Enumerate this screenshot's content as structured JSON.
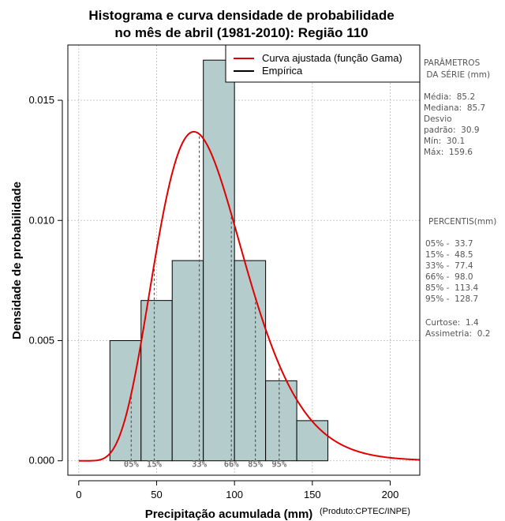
{
  "chart_data": {
    "type": "histogram",
    "title_lines": [
      "Histograma e curva densidade de probabilidade",
      "no mês de abril (1981-2010): Região 110"
    ],
    "xlabel": "Precipitação acumulada (mm)",
    "ylabel": "Densidade de probabilidade",
    "credit": "(Produto:CPTEC/INPE)",
    "xlim": [
      -7,
      219
    ],
    "ylim": [
      -0.0006,
      0.0173
    ],
    "x_ticks": [
      0,
      50,
      100,
      150,
      200
    ],
    "x_tick_labels": [
      "0",
      "50",
      "100",
      "150",
      "200"
    ],
    "y_ticks": [
      0.0,
      0.005,
      0.01,
      0.015
    ],
    "y_tick_labels": [
      "0.000",
      "0.005",
      "0.010",
      "0.015"
    ],
    "grid": true,
    "bins": [
      {
        "start": 20,
        "end": 40,
        "density": 0.005
      },
      {
        "start": 40,
        "end": 60,
        "density": 0.00667
      },
      {
        "start": 60,
        "end": 80,
        "density": 0.00833
      },
      {
        "start": 80,
        "end": 100,
        "density": 0.01667
      },
      {
        "start": 100,
        "end": 120,
        "density": 0.00833
      },
      {
        "start": 120,
        "end": 140,
        "density": 0.00333
      },
      {
        "start": 140,
        "end": 160,
        "density": 0.00167
      }
    ],
    "gamma_fit": {
      "shape": 7.6,
      "scale": 11.2,
      "color": "#e00000"
    },
    "percentile_markers": [
      {
        "label": "05%",
        "value": 33.7
      },
      {
        "label": "15%",
        "value": 48.5
      },
      {
        "label": "33%",
        "value": 77.4
      },
      {
        "label": "66%",
        "value": 98.0
      },
      {
        "label": "85%",
        "value": 113.4
      },
      {
        "label": "95%",
        "value": 128.7
      }
    ],
    "legend": {
      "position": "top-right",
      "entries": [
        {
          "label": "Curva ajustada (função Gama)",
          "color": "#e00000"
        },
        {
          "label": "Empírica",
          "color": "#000000"
        }
      ]
    },
    "bar_fill": "#b4cccc",
    "side_panel": {
      "params_title_lines": [
        "PARÂMETROS",
        " DA SÉRIE (mm)"
      ],
      "params_lines": [
        "Média:  85.2",
        "Mediana:  85.7",
        "Desvio",
        "padrão:  30.9",
        "Mín:  30.1",
        "Máx:  159.6"
      ],
      "percentis_title": "PERCENTIS(mm)",
      "percentis_lines": [
        "05% -  33.7",
        "15% -  48.5",
        "33% -  77.4",
        "66% -  98.0",
        "85% -  113.4",
        "95% -  128.7"
      ],
      "extra_lines": [
        "Curtose:  1.4",
        "Assimetria:  0.2"
      ]
    }
  }
}
